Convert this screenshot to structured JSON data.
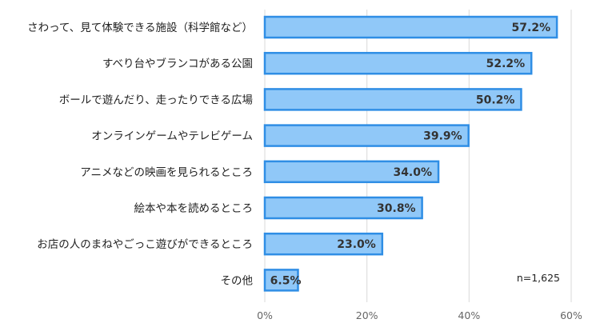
{
  "chart_data": {
    "type": "bar",
    "orientation": "horizontal",
    "categories": [
      "さわって、見て体験できる施設（科学館など）",
      "すべり台やブランコがある公園",
      "ボールで遊んだり、走ったりできる広場",
      "オンラインゲームやテレビゲーム",
      "アニメなどの映画を見られるところ",
      "絵本や本を読めるところ",
      "お店の人のまねやごっこ遊びができるところ",
      "その他"
    ],
    "values": [
      57.2,
      52.2,
      50.2,
      39.9,
      34.0,
      30.8,
      23.0,
      6.5
    ],
    "data_labels": [
      "57.2%",
      "52.2%",
      "50.2%",
      "39.9%",
      "34.0%",
      "30.8%",
      "23.0%",
      "6.5%"
    ],
    "xlim": [
      0,
      60
    ],
    "x_ticks": [
      0,
      20,
      40,
      60
    ],
    "x_tick_labels": [
      "0%",
      "20%",
      "40%",
      "60%"
    ],
    "grid": true,
    "annotation": "n=1,625",
    "colors": {
      "bar_fill": "#90c8f8",
      "bar_stroke": "#2f8ee5",
      "grid": "#d9d9d9"
    }
  }
}
